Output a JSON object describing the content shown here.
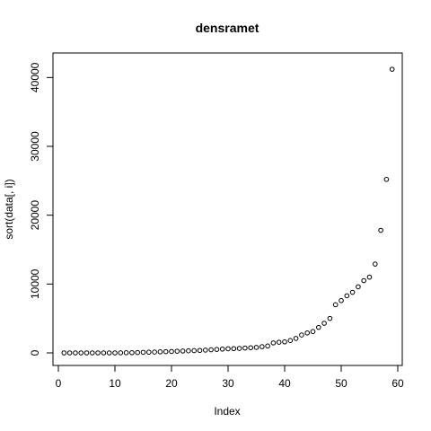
{
  "chart_data": {
    "type": "scatter",
    "title": "densramet",
    "xlabel": "Index",
    "ylabel": "sort(data[, i])",
    "xlim": [
      0,
      60
    ],
    "ylim": [
      0,
      42000
    ],
    "xticks": [
      0,
      10,
      20,
      30,
      40,
      50,
      60
    ],
    "yticks": [
      0,
      10000,
      20000,
      30000,
      40000
    ],
    "grid": false,
    "marker": "open-circle",
    "colors": {
      "points": "#000000",
      "axes": "#000000",
      "background": "#ffffff"
    },
    "x": [
      1,
      2,
      3,
      4,
      5,
      6,
      7,
      8,
      9,
      10,
      11,
      12,
      13,
      14,
      15,
      16,
      17,
      18,
      19,
      20,
      21,
      22,
      23,
      24,
      25,
      26,
      27,
      28,
      29,
      30,
      31,
      32,
      33,
      34,
      35,
      36,
      37,
      38,
      39,
      40,
      41,
      42,
      43,
      44,
      45,
      46,
      47,
      48,
      49,
      50,
      51,
      52,
      53,
      54,
      55,
      56,
      57,
      58,
      59
    ],
    "y": [
      0,
      0,
      0,
      0,
      0,
      0,
      0,
      0,
      0,
      0,
      10,
      20,
      30,
      50,
      80,
      100,
      120,
      150,
      180,
      210,
      240,
      270,
      300,
      330,
      360,
      400,
      450,
      500,
      550,
      600,
      620,
      650,
      700,
      750,
      800,
      900,
      1000,
      1450,
      1550,
      1600,
      1800,
      2100,
      2600,
      2900,
      3100,
      3700,
      4300,
      5000,
      7000,
      7600,
      8300,
      8800,
      9600,
      10500,
      11000,
      12900,
      17800,
      25200,
      41200
    ]
  }
}
